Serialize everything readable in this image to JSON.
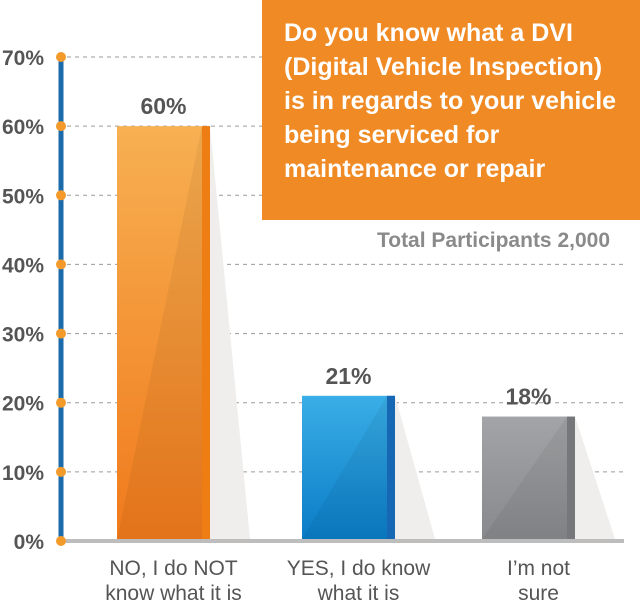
{
  "chart_data": {
    "type": "bar",
    "title": "Do you know what a DVI (Digital Vehicle Inspection) is in regards to your vehicle being serviced for maintenance or repair",
    "subtitle": "Total Participants 2,000",
    "categories": [
      [
        "NO, I do NOT",
        "know what it is"
      ],
      [
        "YES, I do know",
        "what it is"
      ],
      [
        "I’m not",
        "sure"
      ]
    ],
    "values": [
      60,
      21,
      18
    ],
    "data_labels": [
      "60%",
      "21%",
      "18%"
    ],
    "ylim": [
      0,
      70
    ],
    "yticks": [
      0,
      10,
      20,
      30,
      40,
      50,
      60,
      70
    ],
    "ytick_labels": [
      "0%",
      "10%",
      "20%",
      "30%",
      "40%",
      "50%",
      "60%",
      "70%"
    ],
    "grid": true,
    "colors": {
      "bars": [
        [
          "#f7b052",
          "#f07a1c",
          "#ee7d14"
        ],
        [
          "#3aaee6",
          "#0a7cc7",
          "#1668b4"
        ],
        [
          "#a2a4a7",
          "#87898c",
          "#75777a"
        ]
      ],
      "title_box": "#f08a24",
      "axis": "#1b6aaa",
      "tick_dot": "#f39a2b"
    }
  }
}
